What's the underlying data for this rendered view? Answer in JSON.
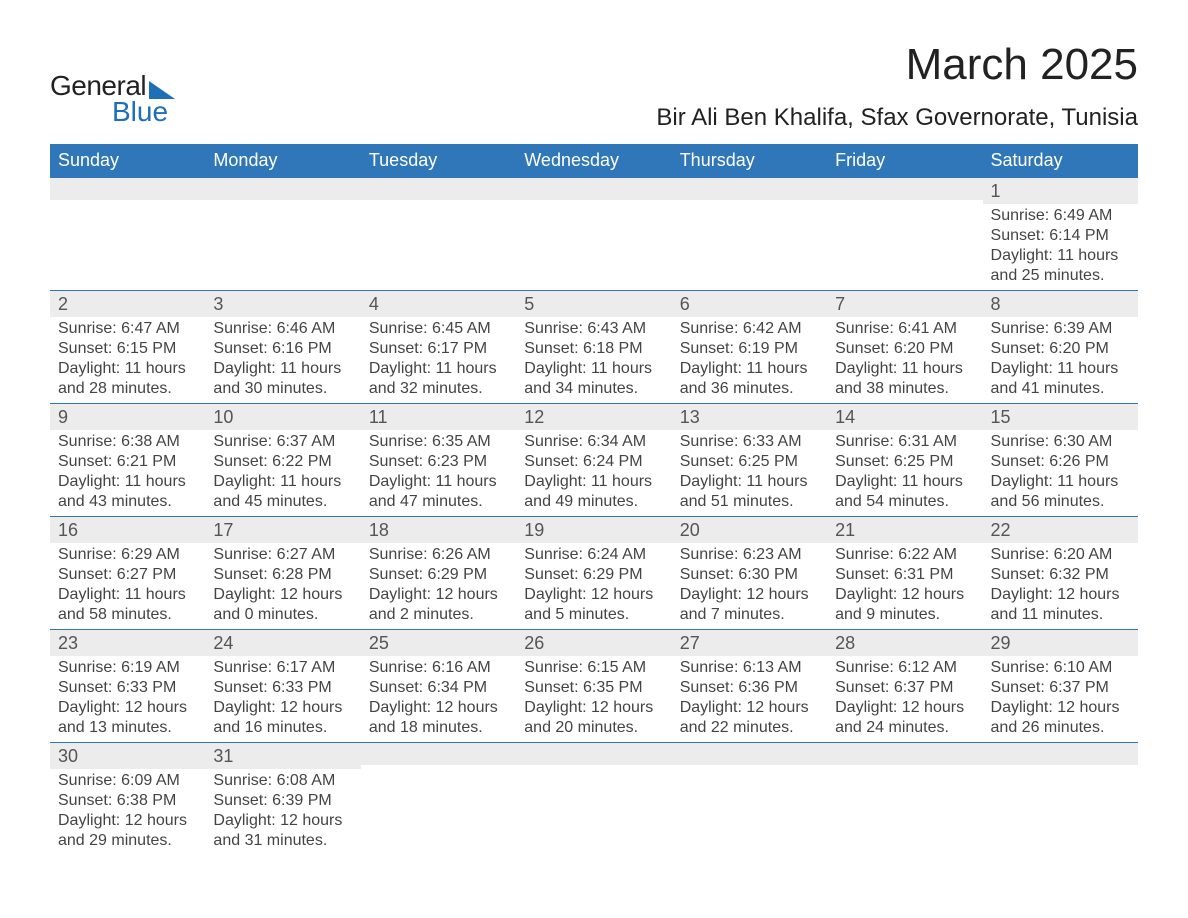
{
  "logo": {
    "text_general": "General",
    "text_blue": "Blue",
    "accent_color": "#1d6fb8"
  },
  "title": "March 2025",
  "location": "Bir Ali Ben Khalifa, Sfax Governorate, Tunisia",
  "calendar": {
    "header_bg": "#2f77b8",
    "header_fg": "#ffffff",
    "daynum_bg": "#ececec",
    "daynum_fg": "#555555",
    "rule_color": "#2f77b8",
    "body_fg": "#444444",
    "days_of_week": [
      "Sunday",
      "Monday",
      "Tuesday",
      "Wednesday",
      "Thursday",
      "Friday",
      "Saturday"
    ],
    "weeks": [
      [
        null,
        null,
        null,
        null,
        null,
        null,
        {
          "n": "1",
          "sunrise": "Sunrise: 6:49 AM",
          "sunset": "Sunset: 6:14 PM",
          "day1": "Daylight: 11 hours",
          "day2": "and 25 minutes."
        }
      ],
      [
        {
          "n": "2",
          "sunrise": "Sunrise: 6:47 AM",
          "sunset": "Sunset: 6:15 PM",
          "day1": "Daylight: 11 hours",
          "day2": "and 28 minutes."
        },
        {
          "n": "3",
          "sunrise": "Sunrise: 6:46 AM",
          "sunset": "Sunset: 6:16 PM",
          "day1": "Daylight: 11 hours",
          "day2": "and 30 minutes."
        },
        {
          "n": "4",
          "sunrise": "Sunrise: 6:45 AM",
          "sunset": "Sunset: 6:17 PM",
          "day1": "Daylight: 11 hours",
          "day2": "and 32 minutes."
        },
        {
          "n": "5",
          "sunrise": "Sunrise: 6:43 AM",
          "sunset": "Sunset: 6:18 PM",
          "day1": "Daylight: 11 hours",
          "day2": "and 34 minutes."
        },
        {
          "n": "6",
          "sunrise": "Sunrise: 6:42 AM",
          "sunset": "Sunset: 6:19 PM",
          "day1": "Daylight: 11 hours",
          "day2": "and 36 minutes."
        },
        {
          "n": "7",
          "sunrise": "Sunrise: 6:41 AM",
          "sunset": "Sunset: 6:20 PM",
          "day1": "Daylight: 11 hours",
          "day2": "and 38 minutes."
        },
        {
          "n": "8",
          "sunrise": "Sunrise: 6:39 AM",
          "sunset": "Sunset: 6:20 PM",
          "day1": "Daylight: 11 hours",
          "day2": "and 41 minutes."
        }
      ],
      [
        {
          "n": "9",
          "sunrise": "Sunrise: 6:38 AM",
          "sunset": "Sunset: 6:21 PM",
          "day1": "Daylight: 11 hours",
          "day2": "and 43 minutes."
        },
        {
          "n": "10",
          "sunrise": "Sunrise: 6:37 AM",
          "sunset": "Sunset: 6:22 PM",
          "day1": "Daylight: 11 hours",
          "day2": "and 45 minutes."
        },
        {
          "n": "11",
          "sunrise": "Sunrise: 6:35 AM",
          "sunset": "Sunset: 6:23 PM",
          "day1": "Daylight: 11 hours",
          "day2": "and 47 minutes."
        },
        {
          "n": "12",
          "sunrise": "Sunrise: 6:34 AM",
          "sunset": "Sunset: 6:24 PM",
          "day1": "Daylight: 11 hours",
          "day2": "and 49 minutes."
        },
        {
          "n": "13",
          "sunrise": "Sunrise: 6:33 AM",
          "sunset": "Sunset: 6:25 PM",
          "day1": "Daylight: 11 hours",
          "day2": "and 51 minutes."
        },
        {
          "n": "14",
          "sunrise": "Sunrise: 6:31 AM",
          "sunset": "Sunset: 6:25 PM",
          "day1": "Daylight: 11 hours",
          "day2": "and 54 minutes."
        },
        {
          "n": "15",
          "sunrise": "Sunrise: 6:30 AM",
          "sunset": "Sunset: 6:26 PM",
          "day1": "Daylight: 11 hours",
          "day2": "and 56 minutes."
        }
      ],
      [
        {
          "n": "16",
          "sunrise": "Sunrise: 6:29 AM",
          "sunset": "Sunset: 6:27 PM",
          "day1": "Daylight: 11 hours",
          "day2": "and 58 minutes."
        },
        {
          "n": "17",
          "sunrise": "Sunrise: 6:27 AM",
          "sunset": "Sunset: 6:28 PM",
          "day1": "Daylight: 12 hours",
          "day2": "and 0 minutes."
        },
        {
          "n": "18",
          "sunrise": "Sunrise: 6:26 AM",
          "sunset": "Sunset: 6:29 PM",
          "day1": "Daylight: 12 hours",
          "day2": "and 2 minutes."
        },
        {
          "n": "19",
          "sunrise": "Sunrise: 6:24 AM",
          "sunset": "Sunset: 6:29 PM",
          "day1": "Daylight: 12 hours",
          "day2": "and 5 minutes."
        },
        {
          "n": "20",
          "sunrise": "Sunrise: 6:23 AM",
          "sunset": "Sunset: 6:30 PM",
          "day1": "Daylight: 12 hours",
          "day2": "and 7 minutes."
        },
        {
          "n": "21",
          "sunrise": "Sunrise: 6:22 AM",
          "sunset": "Sunset: 6:31 PM",
          "day1": "Daylight: 12 hours",
          "day2": "and 9 minutes."
        },
        {
          "n": "22",
          "sunrise": "Sunrise: 6:20 AM",
          "sunset": "Sunset: 6:32 PM",
          "day1": "Daylight: 12 hours",
          "day2": "and 11 minutes."
        }
      ],
      [
        {
          "n": "23",
          "sunrise": "Sunrise: 6:19 AM",
          "sunset": "Sunset: 6:33 PM",
          "day1": "Daylight: 12 hours",
          "day2": "and 13 minutes."
        },
        {
          "n": "24",
          "sunrise": "Sunrise: 6:17 AM",
          "sunset": "Sunset: 6:33 PM",
          "day1": "Daylight: 12 hours",
          "day2": "and 16 minutes."
        },
        {
          "n": "25",
          "sunrise": "Sunrise: 6:16 AM",
          "sunset": "Sunset: 6:34 PM",
          "day1": "Daylight: 12 hours",
          "day2": "and 18 minutes."
        },
        {
          "n": "26",
          "sunrise": "Sunrise: 6:15 AM",
          "sunset": "Sunset: 6:35 PM",
          "day1": "Daylight: 12 hours",
          "day2": "and 20 minutes."
        },
        {
          "n": "27",
          "sunrise": "Sunrise: 6:13 AM",
          "sunset": "Sunset: 6:36 PM",
          "day1": "Daylight: 12 hours",
          "day2": "and 22 minutes."
        },
        {
          "n": "28",
          "sunrise": "Sunrise: 6:12 AM",
          "sunset": "Sunset: 6:37 PM",
          "day1": "Daylight: 12 hours",
          "day2": "and 24 minutes."
        },
        {
          "n": "29",
          "sunrise": "Sunrise: 6:10 AM",
          "sunset": "Sunset: 6:37 PM",
          "day1": "Daylight: 12 hours",
          "day2": "and 26 minutes."
        }
      ],
      [
        {
          "n": "30",
          "sunrise": "Sunrise: 6:09 AM",
          "sunset": "Sunset: 6:38 PM",
          "day1": "Daylight: 12 hours",
          "day2": "and 29 minutes."
        },
        {
          "n": "31",
          "sunrise": "Sunrise: 6:08 AM",
          "sunset": "Sunset: 6:39 PM",
          "day1": "Daylight: 12 hours",
          "day2": "and 31 minutes."
        },
        null,
        null,
        null,
        null,
        null
      ]
    ]
  }
}
